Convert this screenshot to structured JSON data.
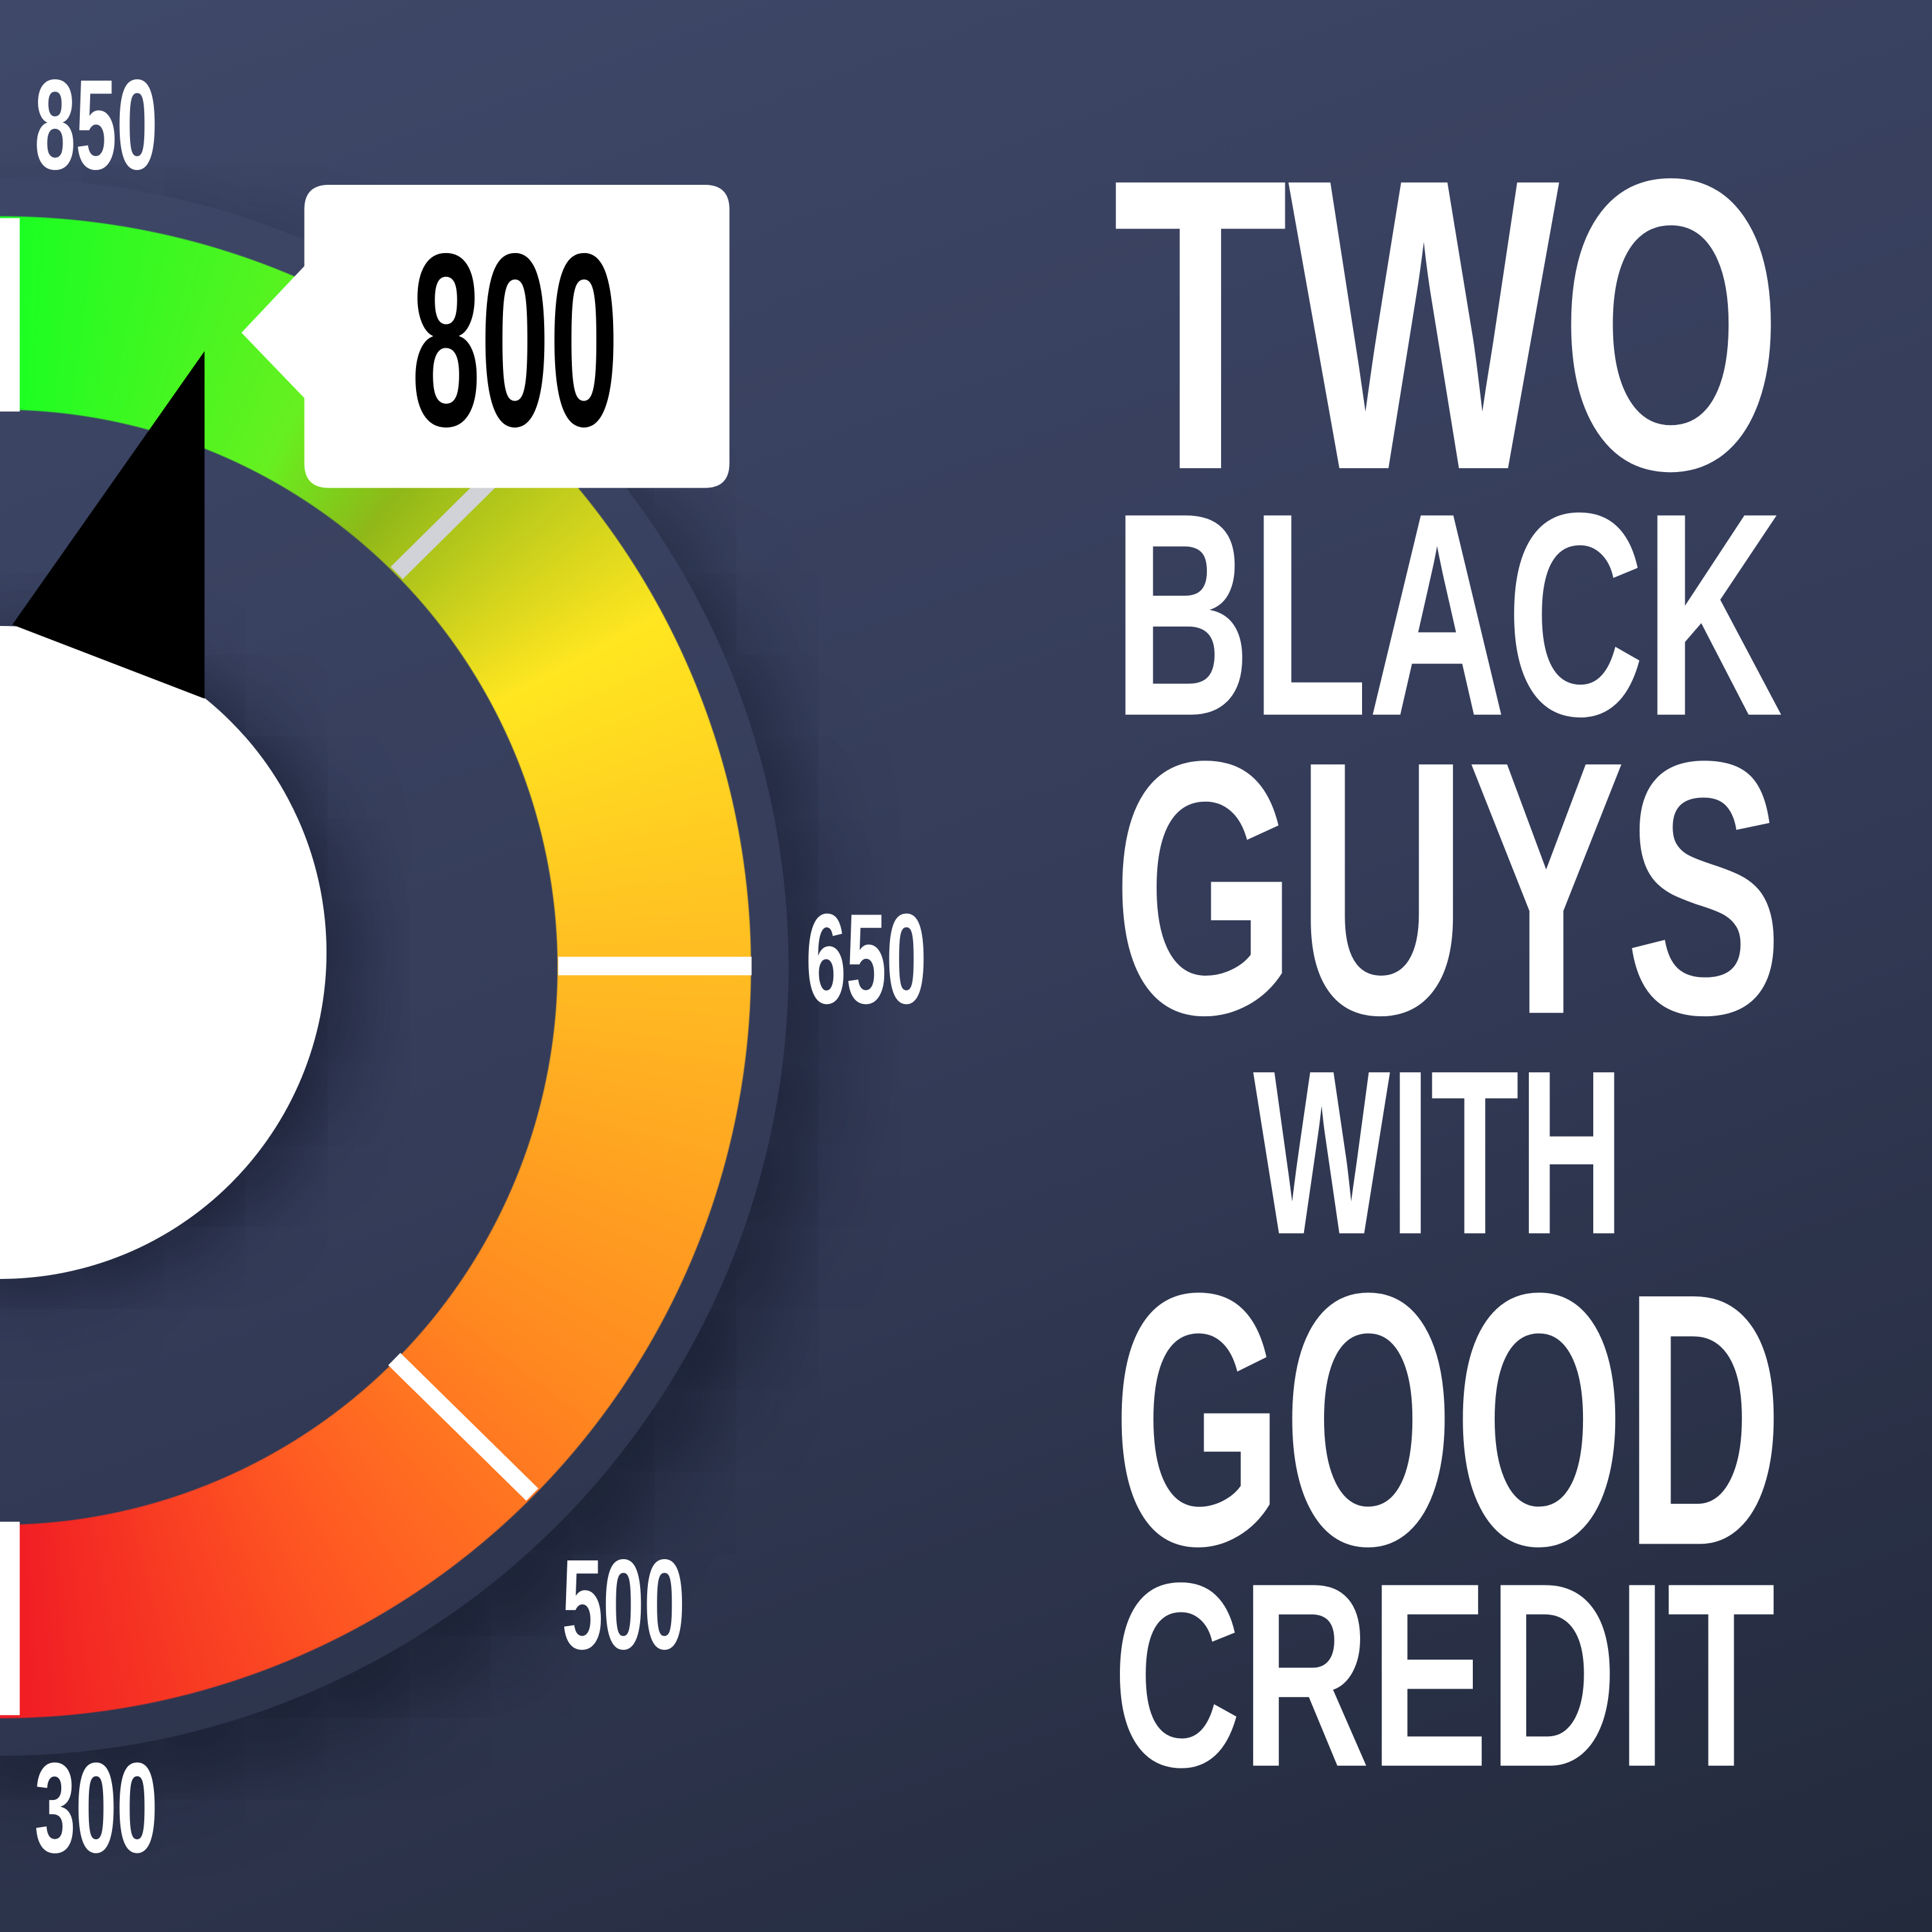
{
  "gauge": {
    "score": "800",
    "scale_labels": {
      "max": "850",
      "mid": "650",
      "low": "500",
      "min": "300"
    },
    "colors": {
      "high": "#18ff22",
      "mid": "#ffe620",
      "low": "#ff8a20",
      "min": "#f01a24"
    }
  },
  "title": {
    "lines": [
      "TWO",
      "BLACK",
      "GUYS",
      "WITH",
      "GOOD",
      "CREDIT"
    ]
  }
}
